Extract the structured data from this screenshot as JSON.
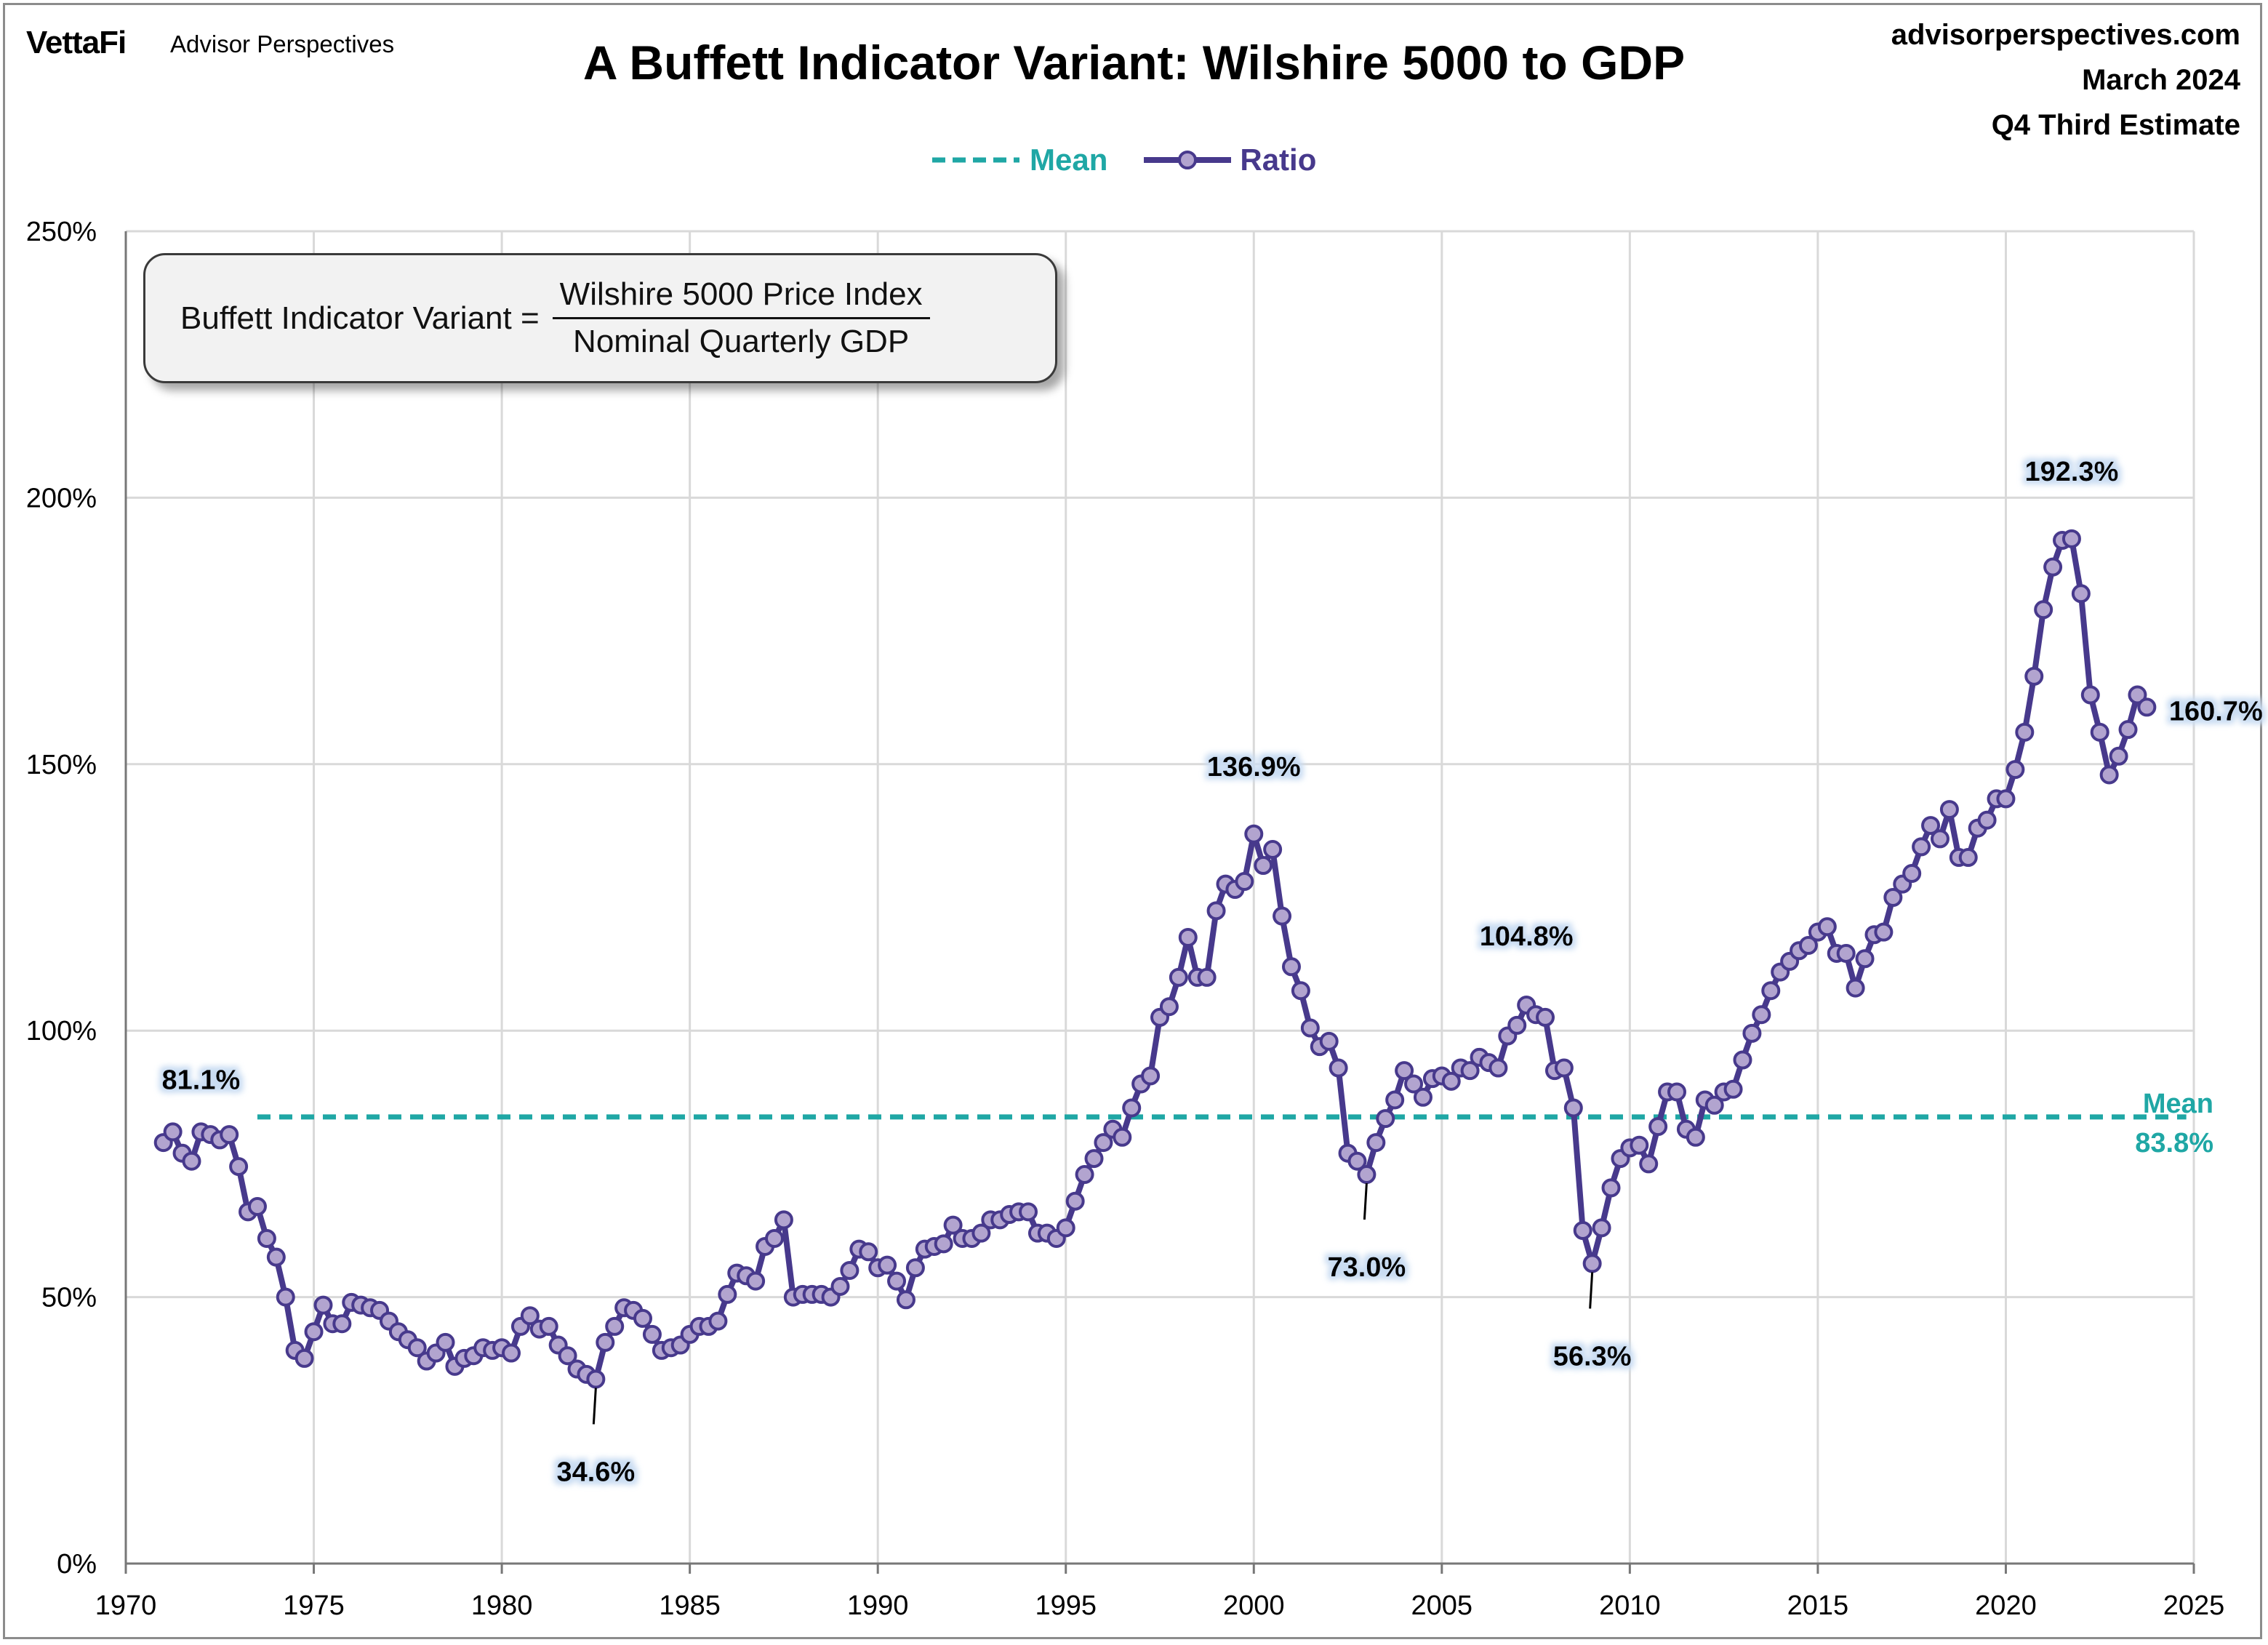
{
  "header": {
    "logo": "VettaFi",
    "brand": "Advisor Perspectives",
    "site": "advisorperspectives.com",
    "date": "March 2024",
    "estimate": "Q4 Third Estimate"
  },
  "formula": {
    "lhs": "Buffett Indicator Variant =",
    "numerator": "Wilshire 5000 Price Index",
    "denominator": "Nominal Quarterly GDP"
  },
  "chart_data": {
    "type": "line",
    "title": "A Buffett Indicator Variant: Wilshire 5000 to GDP",
    "xlim": [
      1970,
      2025
    ],
    "ylim": [
      0,
      250
    ],
    "x_ticks": [
      1970,
      1975,
      1980,
      1985,
      1990,
      1995,
      2000,
      2005,
      2010,
      2015,
      2020,
      2025
    ],
    "y_ticks": [
      0,
      50,
      100,
      150,
      200,
      250
    ],
    "y_tick_labels": [
      "0%",
      "50%",
      "100%",
      "150%",
      "200%",
      "250%"
    ],
    "grid": true,
    "legend": {
      "placement": "top-center",
      "entries": [
        "Mean",
        "Ratio"
      ]
    },
    "colors": {
      "ratio_line": "#47398c",
      "ratio_marker": "#b2a4cf",
      "mean": "#1fa7a5",
      "grid": "#d9d9d9"
    },
    "start": "1971 Q1",
    "frequency": "quarterly",
    "series": [
      {
        "name": "Ratio",
        "values": [
          79,
          81,
          77,
          75.5,
          81,
          80.5,
          79.5,
          80.5,
          74.5,
          66,
          67,
          61,
          57.5,
          50,
          40,
          38.5,
          43.5,
          48.5,
          45,
          45,
          49,
          48.5,
          48,
          47.5,
          45.5,
          43.5,
          42,
          40.5,
          38,
          39.5,
          41.5,
          37,
          38.5,
          39,
          40.5,
          40,
          40.5,
          39.5,
          44.5,
          46.5,
          44,
          44.5,
          41,
          39,
          36.5,
          35.5,
          34.6,
          41.5,
          44.5,
          48,
          47.5,
          46,
          43,
          40,
          40.5,
          41,
          43,
          44.5,
          44.5,
          45.5,
          50.5,
          54.5,
          54,
          53,
          59.5,
          61,
          64.5,
          50,
          50.5,
          50.5,
          50.5,
          50,
          52,
          55,
          59,
          58.5,
          55.5,
          56,
          53,
          49.5,
          55.5,
          59,
          59.5,
          60,
          63.5,
          61,
          61,
          62,
          64.5,
          64.5,
          65.5,
          66,
          66,
          62,
          62,
          61,
          63,
          68,
          73,
          76,
          79,
          81.5,
          80,
          85.5,
          90,
          91.5,
          102.5,
          104.5,
          110,
          117.5,
          110,
          110,
          122.5,
          127.5,
          126.5,
          128,
          136.9,
          131,
          134,
          121.5,
          112,
          107.5,
          100.5,
          97,
          98,
          93,
          77,
          75.5,
          73,
          79,
          83.5,
          87,
          92.5,
          90,
          87.5,
          91,
          91.5,
          90.5,
          93,
          92.5,
          95,
          94,
          93,
          99,
          101,
          104.8,
          103,
          102.5,
          92.5,
          93,
          85.5,
          62.5,
          56.3,
          63,
          70.5,
          76,
          78,
          78.5,
          75,
          82,
          88.5,
          88.5,
          81.5,
          80,
          87,
          86,
          88.5,
          89,
          94.5,
          99.5,
          103,
          107.5,
          111,
          113,
          115,
          116,
          118.5,
          119.5,
          114.5,
          114.5,
          108,
          113.5,
          118,
          118.5,
          125,
          127.5,
          129.5,
          134.5,
          138.5,
          136,
          141.5,
          132.5,
          132.5,
          138,
          139.5,
          143.5,
          143.5,
          149,
          156,
          166.5,
          179,
          187,
          192,
          192.3,
          182,
          163,
          156,
          148,
          151.5,
          156.5,
          163,
          160.7
        ]
      },
      {
        "name": "Mean",
        "value": 83.8,
        "x_range": [
          1973.5,
          2024.8
        ]
      }
    ],
    "annotations": [
      {
        "label": "81.1%",
        "x": 1972.0,
        "y": 81.1
      },
      {
        "label": "34.6%",
        "x": 1982.5,
        "y": 34.6
      },
      {
        "label": "136.9%",
        "x": 2000.0,
        "y": 136.9
      },
      {
        "label": "73.0%",
        "x": 2003.0,
        "y": 73.0
      },
      {
        "label": "104.8%",
        "x": 2007.25,
        "y": 104.8
      },
      {
        "label": "56.3%",
        "x": 2009.0,
        "y": 56.3
      },
      {
        "label": "192.3%",
        "x": 2021.75,
        "y": 192.3
      },
      {
        "label": "160.7%",
        "x": 2023.75,
        "y": 160.7
      }
    ],
    "mean_label": "Mean",
    "mean_value_label": "83.8%"
  }
}
